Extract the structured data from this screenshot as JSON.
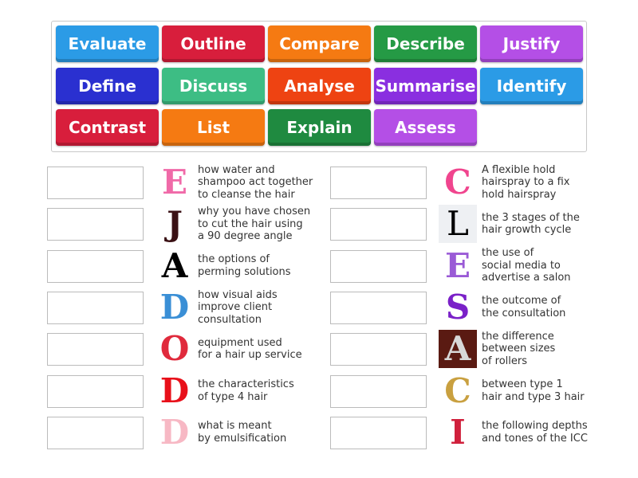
{
  "tiles": [
    {
      "label": "Evaluate",
      "color": "#2b9be6"
    },
    {
      "label": "Outline",
      "color": "#d81e3c"
    },
    {
      "label": "Compare",
      "color": "#f57a12"
    },
    {
      "label": "Describe",
      "color": "#259a45"
    },
    {
      "label": "Justify",
      "color": "#b44fe6"
    },
    {
      "label": "Define",
      "color": "#2a30d0"
    },
    {
      "label": "Discuss",
      "color": "#3dbd84"
    },
    {
      "label": "Analyse",
      "color": "#ee4312"
    },
    {
      "label": "Summarise",
      "color": "#8a2fe0"
    },
    {
      "label": "Identify",
      "color": "#2b9be6"
    },
    {
      "label": "Contrast",
      "color": "#d81e3c"
    },
    {
      "label": "List",
      "color": "#f57a12"
    },
    {
      "label": "Explain",
      "color": "#1f8a40"
    },
    {
      "label": "Assess",
      "color": "#b44fe6"
    }
  ],
  "left_items": [
    {
      "letter": "E",
      "letter_color": "#f06aa8",
      "text": "how water and\nshampoo act together\nto cleanse the hair"
    },
    {
      "letter": "J",
      "letter_color": "#3a1014",
      "text": "why you have chosen\nto cut the hair using\na 90 degree angle"
    },
    {
      "letter": "A",
      "letter_color": "#000000",
      "text": "the options of\nperming solutions"
    },
    {
      "letter": "D",
      "letter_color": "#3a8fd6",
      "text": "how visual aids\nimprove client\nconsultation"
    },
    {
      "letter": "O",
      "letter_color": "#e02a3c",
      "text": "equipment used\nfor a hair up service"
    },
    {
      "letter": "D",
      "letter_color": "#e8101a",
      "text": "the characteristics\nof type 4 hair"
    },
    {
      "letter": "D",
      "letter_color": "#f7b8c4",
      "text": "what is meant\nby emulsification"
    }
  ],
  "right_items": [
    {
      "letter": "C",
      "letter_color": "#f0458e",
      "text": "A flexible hold\nhairspray to a fix\nhold hairspray"
    },
    {
      "letter": "L",
      "letter_color": "#000000",
      "text": "the 3 stages of the\nhair growth cycle"
    },
    {
      "letter": "E",
      "letter_color": "#9a5ad6",
      "text": "the use of\nsocial media to\nadvertise a salon"
    },
    {
      "letter": "S",
      "letter_color": "#7a20c8",
      "text": "the outcome of\nthe consultation"
    },
    {
      "letter": "A",
      "letter_color": "#d8d8d8",
      "text": "the difference\nbetween sizes\nof rollers"
    },
    {
      "letter": "C",
      "letter_color": "#c9a040",
      "text": "between type 1\nhair and type 3 hair"
    },
    {
      "letter": "I",
      "letter_color": "#d0203c",
      "text": "the following depths\nand tones of the ICC"
    }
  ]
}
